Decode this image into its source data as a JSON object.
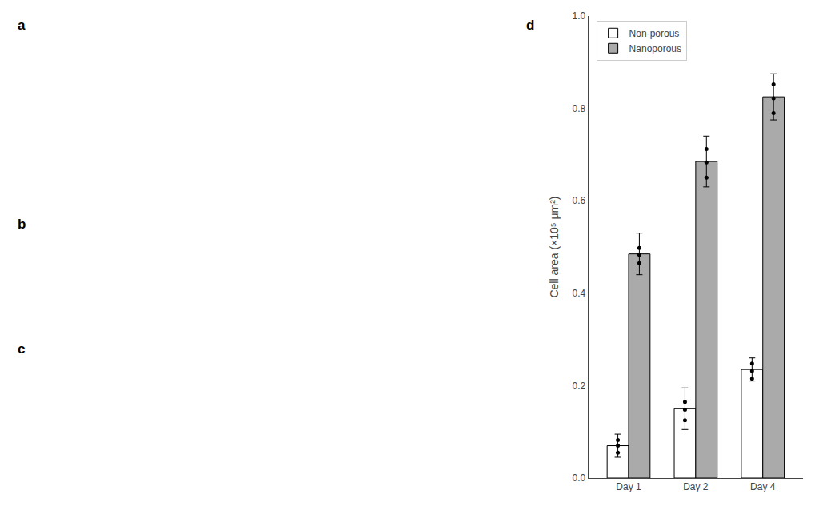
{
  "chart_data": {
    "type": "bar",
    "categories": [
      "Day 1",
      "Day 2",
      "Day 4"
    ],
    "series": [
      {
        "name": "Non-porous",
        "color": "#ffffff",
        "values": [
          0.07,
          0.15,
          0.235
        ],
        "errors": [
          0.025,
          0.045,
          0.025
        ],
        "points": [
          [
            0.055,
            0.07,
            0.082
          ],
          [
            0.125,
            0.148,
            0.165
          ],
          [
            0.215,
            0.232,
            0.248
          ]
        ]
      },
      {
        "name": "Nanoporous",
        "color": "#aaaaaa",
        "values": [
          0.485,
          0.685,
          0.825
        ],
        "errors": [
          0.045,
          0.055,
          0.05
        ],
        "points": [
          [
            0.465,
            0.483,
            0.498
          ],
          [
            0.65,
            0.683,
            0.712
          ],
          [
            0.79,
            0.822,
            0.852
          ]
        ]
      }
    ],
    "ylabel": "Cell area (×10⁵ μm²)",
    "ylim": [
      0,
      1.0
    ],
    "yticks": [
      {
        "value": 0.0,
        "label": "0.0"
      },
      0.2,
      0.4,
      0.6,
      0.8,
      {
        "value": 1.0,
        "label": "1.0"
      }
    ],
    "legend": "upper left",
    "grid": false,
    "annotations": [
      "a",
      "b",
      "c",
      "d"
    ]
  }
}
